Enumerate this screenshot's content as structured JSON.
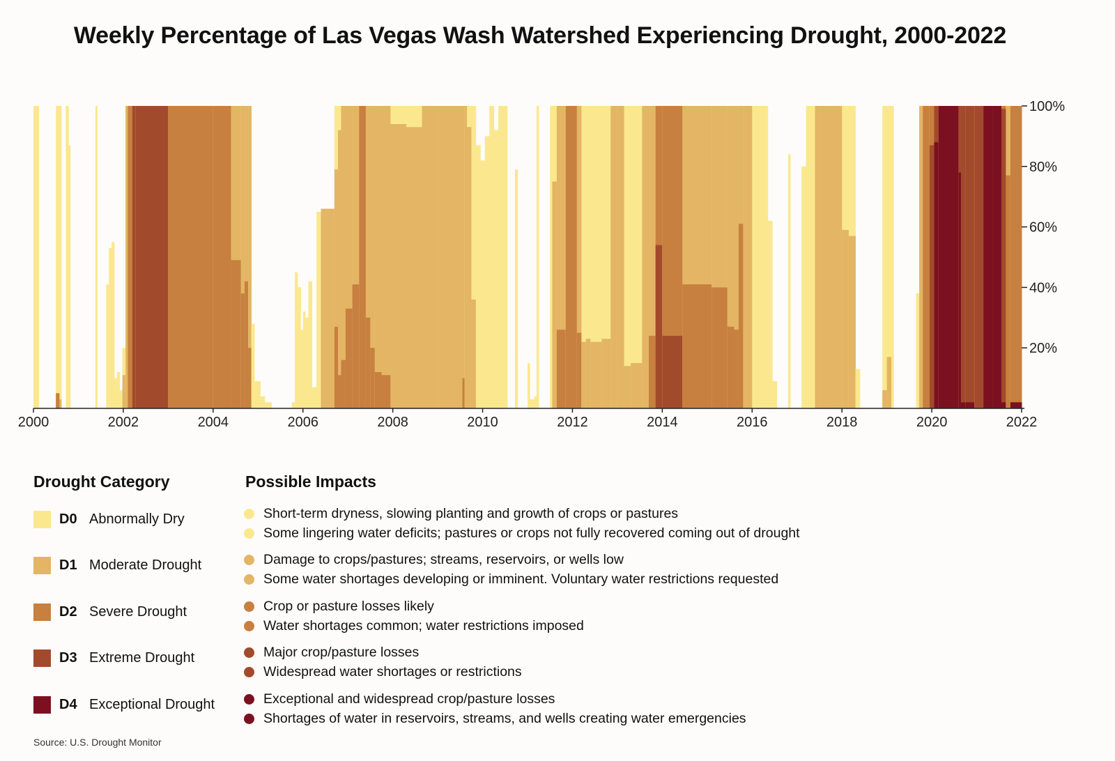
{
  "chart_data": {
    "type": "area",
    "title": "Weekly Percentage of Las Vegas Wash Watershed Experiencing Drought, 2000-2022",
    "x_range": [
      2000,
      2022
    ],
    "x_ticks": [
      "2000",
      "2002",
      "2004",
      "2006",
      "2008",
      "2010",
      "2012",
      "2014",
      "2016",
      "2018",
      "2020",
      "2022"
    ],
    "y_range": [
      0,
      100
    ],
    "y_ticks": [
      "20%",
      "40%",
      "60%",
      "80%",
      "100%"
    ],
    "y_axis_side": "right",
    "colors": {
      "D0": "#fbe88e",
      "D1": "#e3b565",
      "D2": "#c7803f",
      "D3": "#a24a2c",
      "D4": "#7b1120"
    },
    "series_note": "Each row: [start_year, end_year, D0+ %, D1+ %, D2+ %, D3+ %, D4 %] (cumulative percent of watershed at or above each category)",
    "series": [
      [
        2000.0,
        2000.12,
        100,
        0,
        0,
        0,
        0
      ],
      [
        2000.5,
        2000.58,
        100,
        5,
        5,
        0,
        0
      ],
      [
        2000.58,
        2000.62,
        100,
        3,
        0,
        0,
        0
      ],
      [
        2000.72,
        2000.78,
        100,
        0,
        0,
        0,
        0
      ],
      [
        2000.78,
        2000.82,
        87,
        0,
        0,
        0,
        0
      ],
      [
        2001.38,
        2001.42,
        100,
        0,
        0,
        0,
        0
      ],
      [
        2001.62,
        2001.68,
        41,
        0,
        0,
        0,
        0
      ],
      [
        2001.68,
        2001.74,
        53,
        0,
        0,
        0,
        0
      ],
      [
        2001.74,
        2001.8,
        55,
        0,
        0,
        0,
        0
      ],
      [
        2001.8,
        2001.86,
        10,
        0,
        0,
        0,
        0
      ],
      [
        2001.86,
        2001.92,
        12,
        0,
        0,
        0,
        0
      ],
      [
        2001.92,
        2001.98,
        6,
        0,
        0,
        0,
        0
      ],
      [
        2001.98,
        2002.05,
        20,
        11,
        0,
        0,
        0
      ],
      [
        2002.05,
        2002.1,
        100,
        100,
        0,
        0,
        0
      ],
      [
        2002.1,
        2002.2,
        100,
        100,
        100,
        0,
        0
      ],
      [
        2002.2,
        2002.27,
        100,
        100,
        100,
        100,
        0
      ],
      [
        2002.27,
        2003.0,
        100,
        100,
        100,
        100,
        0
      ],
      [
        2003.0,
        2004.0,
        100,
        100,
        100,
        0,
        0
      ],
      [
        2004.0,
        2004.4,
        100,
        100,
        100,
        0,
        0
      ],
      [
        2004.4,
        2004.62,
        100,
        100,
        49,
        0,
        0
      ],
      [
        2004.62,
        2004.7,
        100,
        100,
        38,
        0,
        0
      ],
      [
        2004.7,
        2004.78,
        100,
        100,
        42,
        0,
        0
      ],
      [
        2004.78,
        2004.85,
        100,
        100,
        20,
        0,
        0
      ],
      [
        2004.85,
        2004.92,
        28,
        0,
        0,
        0,
        0
      ],
      [
        2004.92,
        2005.05,
        9,
        0,
        0,
        0,
        0
      ],
      [
        2005.05,
        2005.15,
        4,
        0,
        0,
        0,
        0
      ],
      [
        2005.15,
        2005.3,
        2,
        0,
        0,
        0,
        0
      ],
      [
        2005.3,
        2005.75,
        0,
        0,
        0,
        0,
        0
      ],
      [
        2005.75,
        2005.82,
        2,
        0,
        0,
        0,
        0
      ],
      [
        2005.82,
        2005.88,
        45,
        0,
        0,
        0,
        0
      ],
      [
        2005.88,
        2005.95,
        40,
        0,
        0,
        0,
        0
      ],
      [
        2005.95,
        2006.0,
        26,
        0,
        0,
        0,
        0
      ],
      [
        2006.0,
        2006.05,
        32,
        0,
        0,
        0,
        0
      ],
      [
        2006.05,
        2006.12,
        30,
        0,
        0,
        0,
        0
      ],
      [
        2006.12,
        2006.2,
        42,
        0,
        0,
        0,
        0
      ],
      [
        2006.2,
        2006.3,
        7,
        0,
        0,
        0,
        0
      ],
      [
        2006.3,
        2006.4,
        65,
        0,
        0,
        0,
        0
      ],
      [
        2006.4,
        2006.7,
        66,
        66,
        0,
        0,
        0
      ],
      [
        2006.7,
        2006.78,
        100,
        79,
        27,
        0,
        0
      ],
      [
        2006.78,
        2006.85,
        100,
        92,
        11,
        0,
        0
      ],
      [
        2006.85,
        2006.95,
        100,
        100,
        16,
        0,
        0
      ],
      [
        2006.95,
        2007.1,
        100,
        100,
        33,
        0,
        0
      ],
      [
        2007.1,
        2007.25,
        100,
        100,
        41,
        0,
        0
      ],
      [
        2007.25,
        2007.4,
        100,
        100,
        100,
        0,
        0
      ],
      [
        2007.4,
        2007.5,
        100,
        100,
        30,
        0,
        0
      ],
      [
        2007.5,
        2007.6,
        100,
        100,
        20,
        0,
        0
      ],
      [
        2007.6,
        2007.75,
        100,
        100,
        12,
        0,
        0
      ],
      [
        2007.75,
        2007.95,
        100,
        100,
        11,
        0,
        0
      ],
      [
        2007.95,
        2008.3,
        100,
        94,
        0,
        0,
        0
      ],
      [
        2008.3,
        2008.65,
        100,
        93,
        0,
        0,
        0
      ],
      [
        2008.65,
        2009.0,
        100,
        100,
        0,
        0,
        0
      ],
      [
        2009.0,
        2009.55,
        100,
        100,
        0,
        0,
        0
      ],
      [
        2009.55,
        2009.6,
        100,
        100,
        10,
        0,
        0
      ],
      [
        2009.6,
        2009.65,
        100,
        100,
        0,
        0,
        0
      ],
      [
        2009.65,
        2009.75,
        100,
        93,
        0,
        0,
        0
      ],
      [
        2009.75,
        2009.85,
        100,
        36,
        0,
        0,
        0
      ],
      [
        2009.85,
        2009.95,
        87,
        0,
        0,
        0,
        0
      ],
      [
        2009.95,
        2010.05,
        82,
        0,
        0,
        0,
        0
      ],
      [
        2010.05,
        2010.15,
        90,
        0,
        0,
        0,
        0
      ],
      [
        2010.15,
        2010.25,
        100,
        0,
        0,
        0,
        0
      ],
      [
        2010.25,
        2010.35,
        92,
        0,
        0,
        0,
        0
      ],
      [
        2010.35,
        2010.55,
        100,
        0,
        0,
        0,
        0
      ],
      [
        2010.72,
        2010.78,
        79,
        0,
        0,
        0,
        0
      ],
      [
        2011.0,
        2011.05,
        15,
        0,
        0,
        0,
        0
      ],
      [
        2011.05,
        2011.15,
        3,
        0,
        0,
        0,
        0
      ],
      [
        2011.15,
        2011.25,
        4,
        0,
        0,
        0,
        0
      ],
      [
        2011.2,
        2011.25,
        100,
        0,
        0,
        0,
        0
      ],
      [
        2011.5,
        2011.55,
        100,
        0,
        0,
        0,
        0
      ],
      [
        2011.55,
        2011.65,
        100,
        75,
        0,
        0,
        0
      ],
      [
        2011.65,
        2011.85,
        100,
        100,
        26,
        0,
        0
      ],
      [
        2011.85,
        2012.1,
        100,
        100,
        100,
        0,
        0
      ],
      [
        2012.1,
        2012.2,
        100,
        100,
        25,
        0,
        0
      ],
      [
        2012.2,
        2012.3,
        100,
        22,
        0,
        0,
        0
      ],
      [
        2012.3,
        2012.4,
        100,
        23,
        0,
        0,
        0
      ],
      [
        2012.4,
        2012.65,
        100,
        22,
        0,
        0,
        0
      ],
      [
        2012.65,
        2012.85,
        100,
        23,
        0,
        0,
        0
      ],
      [
        2012.85,
        2013.0,
        100,
        100,
        0,
        0,
        0
      ],
      [
        2013.0,
        2013.15,
        100,
        100,
        0,
        0,
        0
      ],
      [
        2013.15,
        2013.3,
        100,
        14,
        0,
        0,
        0
      ],
      [
        2013.3,
        2013.55,
        100,
        15,
        0,
        0,
        0
      ],
      [
        2013.55,
        2013.7,
        100,
        100,
        0,
        0,
        0
      ],
      [
        2013.7,
        2013.85,
        100,
        100,
        24,
        0,
        0
      ],
      [
        2013.85,
        2014.0,
        100,
        100,
        100,
        54,
        0
      ],
      [
        2014.0,
        2014.45,
        100,
        100,
        100,
        24,
        0
      ],
      [
        2014.45,
        2014.7,
        100,
        100,
        41,
        0,
        0
      ],
      [
        2014.7,
        2015.1,
        100,
        100,
        41,
        0,
        0
      ],
      [
        2015.1,
        2015.45,
        100,
        100,
        40,
        0,
        0
      ],
      [
        2015.45,
        2015.6,
        100,
        100,
        27,
        0,
        0
      ],
      [
        2015.6,
        2015.7,
        100,
        100,
        26,
        0,
        0
      ],
      [
        2015.7,
        2015.8,
        100,
        100,
        61,
        0,
        0
      ],
      [
        2015.8,
        2016.0,
        100,
        100,
        0,
        0,
        0
      ],
      [
        2016.0,
        2016.35,
        100,
        0,
        0,
        0,
        0
      ],
      [
        2016.35,
        2016.45,
        62,
        0,
        0,
        0,
        0
      ],
      [
        2016.45,
        2016.55,
        9,
        0,
        0,
        0,
        0
      ],
      [
        2016.8,
        2016.85,
        84,
        0,
        0,
        0,
        0
      ],
      [
        2017.1,
        2017.2,
        80,
        0,
        0,
        0,
        0
      ],
      [
        2017.2,
        2017.4,
        100,
        0,
        0,
        0,
        0
      ],
      [
        2017.4,
        2017.5,
        100,
        100,
        0,
        0,
        0
      ],
      [
        2017.5,
        2017.85,
        100,
        100,
        0,
        0,
        0
      ],
      [
        2017.85,
        2018.0,
        100,
        100,
        0,
        0,
        0
      ],
      [
        2018.0,
        2018.15,
        100,
        59,
        0,
        0,
        0
      ],
      [
        2018.15,
        2018.3,
        100,
        57,
        0,
        0,
        0
      ],
      [
        2018.3,
        2018.4,
        13,
        0,
        0,
        0,
        0
      ],
      [
        2018.9,
        2019.0,
        100,
        6,
        0,
        0,
        0
      ],
      [
        2019.0,
        2019.1,
        100,
        17,
        0,
        0,
        0
      ],
      [
        2019.1,
        2019.15,
        100,
        0,
        0,
        0,
        0
      ],
      [
        2019.65,
        2019.72,
        38,
        0,
        0,
        0,
        0
      ],
      [
        2019.72,
        2019.8,
        100,
        100,
        0,
        0,
        0
      ],
      [
        2019.8,
        2019.95,
        100,
        100,
        100,
        0,
        0
      ],
      [
        2019.95,
        2020.05,
        100,
        100,
        100,
        87,
        0
      ],
      [
        2020.05,
        2020.15,
        100,
        100,
        100,
        100,
        88
      ],
      [
        2020.15,
        2020.6,
        100,
        100,
        100,
        100,
        100
      ],
      [
        2020.6,
        2020.65,
        100,
        100,
        100,
        100,
        78
      ],
      [
        2020.65,
        2020.75,
        100,
        100,
        100,
        100,
        2
      ],
      [
        2020.75,
        2020.95,
        100,
        100,
        100,
        100,
        2
      ],
      [
        2020.95,
        2021.15,
        100,
        100,
        100,
        100,
        0
      ],
      [
        2021.15,
        2021.35,
        100,
        100,
        100,
        100,
        100
      ],
      [
        2021.35,
        2021.55,
        100,
        100,
        100,
        100,
        100
      ],
      [
        2021.55,
        2021.65,
        100,
        100,
        100,
        99,
        2
      ],
      [
        2021.65,
        2021.75,
        100,
        100,
        77,
        0,
        0
      ],
      [
        2021.75,
        2022.0,
        100,
        100,
        100,
        2,
        2
      ]
    ]
  },
  "legend": {
    "category_heading": "Drought Category",
    "impacts_heading": "Possible Impacts",
    "categories": [
      {
        "code": "D0",
        "label": "Abnormally Dry",
        "color": "#fbe88e"
      },
      {
        "code": "D1",
        "label": "Moderate Drought",
        "color": "#e3b565"
      },
      {
        "code": "D2",
        "label": "Severe Drought",
        "color": "#c7803f"
      },
      {
        "code": "D3",
        "label": "Extreme Drought",
        "color": "#a24a2c"
      },
      {
        "code": "D4",
        "label": "Exceptional Drought",
        "color": "#7b1120"
      }
    ],
    "impacts": [
      {
        "code": "D0",
        "color": "#fbe88e",
        "lines": [
          "Short-term dryness, slowing planting and growth of crops or pastures",
          "Some lingering water deficits; pastures or crops not fully recovered coming out of drought"
        ]
      },
      {
        "code": "D1",
        "color": "#e3b565",
        "lines": [
          "Damage to crops/pastures; streams, reservoirs, or wells low",
          "Some water shortages developing or imminent. Voluntary water restrictions requested"
        ]
      },
      {
        "code": "D2",
        "color": "#c7803f",
        "lines": [
          "Crop or pasture losses likely",
          "Water shortages common; water restrictions imposed"
        ]
      },
      {
        "code": "D3",
        "color": "#a24a2c",
        "lines": [
          "Major crop/pasture losses",
          "Widespread water shortages or restrictions"
        ]
      },
      {
        "code": "D4",
        "color": "#7b1120",
        "lines": [
          "Exceptional and widespread crop/pasture losses",
          "Shortages of water in reservoirs, streams, and wells creating water emergencies"
        ]
      }
    ]
  },
  "source": "Source: U.S. Drought Monitor"
}
